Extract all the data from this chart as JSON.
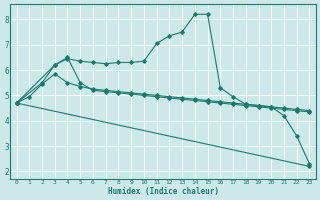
{
  "xlabel": "Humidex (Indice chaleur)",
  "bg_color": "#cce8e8",
  "grid_color": "#ffffff",
  "line_color": "#1a7a6e",
  "xlim": [
    -0.5,
    23.5
  ],
  "ylim": [
    1.7,
    8.6
  ],
  "yticks": [
    2,
    3,
    4,
    5,
    6,
    7,
    8
  ],
  "xticks": [
    0,
    1,
    2,
    3,
    4,
    5,
    6,
    7,
    8,
    9,
    10,
    11,
    12,
    13,
    14,
    15,
    16,
    17,
    18,
    19,
    20,
    21,
    22,
    23
  ],
  "line1_x": [
    0,
    1,
    2,
    3,
    4,
    5,
    6,
    7,
    8,
    9,
    10,
    11,
    12,
    13,
    14,
    15,
    16,
    17,
    18,
    19,
    20,
    21,
    22,
    23
  ],
  "line1_y": [
    4.7,
    4.95,
    5.45,
    5.85,
    5.5,
    5.35,
    5.25,
    5.2,
    5.15,
    5.1,
    5.05,
    5.0,
    4.95,
    4.9,
    4.85,
    4.8,
    4.75,
    4.7,
    4.65,
    4.6,
    4.55,
    4.5,
    4.45,
    4.4
  ],
  "line2_x": [
    0,
    3,
    4,
    5,
    6,
    7,
    8,
    9,
    10,
    11,
    12,
    13,
    14,
    15,
    16,
    17,
    18,
    19,
    20,
    21,
    22,
    23
  ],
  "line2_y": [
    4.7,
    6.2,
    6.5,
    5.5,
    5.2,
    5.15,
    5.1,
    5.05,
    5.0,
    4.95,
    4.9,
    4.85,
    4.8,
    4.75,
    4.7,
    4.65,
    4.6,
    4.55,
    4.5,
    4.45,
    4.4,
    4.35
  ],
  "line3_x": [
    0,
    2,
    3,
    4,
    5,
    6,
    7,
    8,
    9,
    10,
    11,
    12,
    13,
    14,
    15,
    16,
    17,
    18,
    19,
    20,
    21,
    22,
    23
  ],
  "line3_y": [
    4.7,
    5.5,
    6.2,
    6.45,
    6.35,
    6.3,
    6.25,
    6.3,
    6.3,
    6.35,
    7.05,
    7.35,
    7.5,
    8.2,
    8.2,
    5.3,
    4.95,
    4.65,
    4.6,
    4.55,
    4.2,
    3.4,
    2.3
  ],
  "line4_x": [
    0,
    23
  ],
  "line4_y": [
    4.7,
    2.2
  ]
}
